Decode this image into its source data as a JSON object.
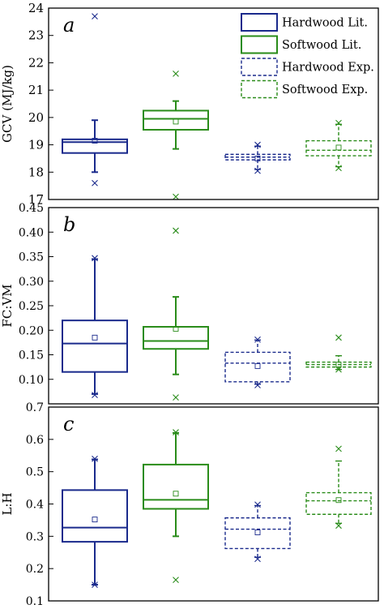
{
  "chart_data": [
    {
      "type": "box",
      "panel_label": "a",
      "ylabel": "GCV (MJ/kg)",
      "ylim": [
        17,
        24
      ],
      "yticks": [
        17,
        18,
        19,
        20,
        21,
        22,
        23,
        24
      ],
      "grid": false,
      "legend": {
        "placement": "top-right",
        "entries": [
          {
            "name": "Hardwood Lit.",
            "color": "#1a2a8c",
            "style": "solid"
          },
          {
            "name": "Softwood Lit.",
            "color": "#2a8c1a",
            "style": "solid"
          },
          {
            "name": "Hardwood Exp.",
            "color": "#1a2a8c",
            "style": "dashed"
          },
          {
            "name": "Softwood Exp.",
            "color": "#2a8c1a",
            "style": "dashed"
          }
        ]
      },
      "series": [
        {
          "name": "Hardwood Lit.",
          "color": "#1a2a8c",
          "style": "solid",
          "whisker_low": 18.0,
          "q1": 18.7,
          "median": 19.1,
          "q3": 19.2,
          "whisker_high": 19.9,
          "mean": 19.15,
          "outliers": [
            17.6,
            23.7
          ]
        },
        {
          "name": "Softwood Lit.",
          "color": "#2a8c1a",
          "style": "solid",
          "whisker_low": 18.85,
          "q1": 19.55,
          "median": 19.95,
          "q3": 20.25,
          "whisker_high": 20.6,
          "mean": 19.85,
          "outliers": [
            17.1,
            21.6
          ]
        },
        {
          "name": "Hardwood Exp.",
          "color": "#1a2a8c",
          "style": "dashed",
          "whisker_low": 18.1,
          "q1": 18.45,
          "median": 18.55,
          "q3": 18.65,
          "whisker_high": 18.95,
          "mean": 18.5,
          "outliers": [
            18.05,
            19.0
          ]
        },
        {
          "name": "Softwood Exp.",
          "color": "#2a8c1a",
          "style": "dashed",
          "whisker_low": 18.2,
          "q1": 18.6,
          "median": 18.8,
          "q3": 19.15,
          "whisker_high": 19.75,
          "mean": 18.9,
          "outliers": [
            18.15,
            19.8
          ]
        }
      ]
    },
    {
      "type": "box",
      "panel_label": "b",
      "ylabel": "FC:VM",
      "ylim": [
        0.05,
        0.45
      ],
      "yticks": [
        0.1,
        0.15,
        0.2,
        0.25,
        0.3,
        0.35,
        0.4,
        0.45
      ],
      "ytick_labels": [
        "0.10",
        "0.15",
        "0.20",
        "0.25",
        "0.30",
        "0.35",
        "0.40",
        "0.45"
      ],
      "grid": false,
      "series": [
        {
          "name": "Hardwood Lit.",
          "color": "#1a2a8c",
          "style": "solid",
          "whisker_low": 0.07,
          "q1": 0.115,
          "median": 0.173,
          "q3": 0.22,
          "whisker_high": 0.345,
          "mean": 0.185,
          "outliers": [
            0.068,
            0.347
          ]
        },
        {
          "name": "Softwood Lit.",
          "color": "#2a8c1a",
          "style": "solid",
          "whisker_low": 0.11,
          "q1": 0.162,
          "median": 0.178,
          "q3": 0.207,
          "whisker_high": 0.268,
          "mean": 0.203,
          "outliers": [
            0.063,
            0.403
          ]
        },
        {
          "name": "Hardwood Exp.",
          "color": "#1a2a8c",
          "style": "dashed",
          "whisker_low": 0.09,
          "q1": 0.095,
          "median": 0.133,
          "q3": 0.155,
          "whisker_high": 0.18,
          "mean": 0.127,
          "outliers": [
            0.088,
            0.181
          ]
        },
        {
          "name": "Softwood Exp.",
          "color": "#2a8c1a",
          "style": "dashed",
          "whisker_low": 0.12,
          "q1": 0.125,
          "median": 0.13,
          "q3": 0.135,
          "whisker_high": 0.148,
          "mean": 0.13,
          "outliers": [
            0.12,
            0.185
          ]
        }
      ]
    },
    {
      "type": "box",
      "panel_label": "c",
      "ylabel": "L:H",
      "ylim": [
        0.1,
        0.7
      ],
      "yticks": [
        0.1,
        0.2,
        0.3,
        0.4,
        0.5,
        0.6,
        0.7
      ],
      "ytick_labels": [
        "0.1",
        "0.2",
        "0.3",
        "0.4",
        "0.5",
        "0.6",
        "0.7"
      ],
      "grid": false,
      "series": [
        {
          "name": "Hardwood Lit.",
          "color": "#1a2a8c",
          "style": "solid",
          "whisker_low": 0.15,
          "q1": 0.283,
          "median": 0.327,
          "q3": 0.443,
          "whisker_high": 0.538,
          "mean": 0.352,
          "outliers": [
            0.15,
            0.54
          ]
        },
        {
          "name": "Softwood Lit.",
          "color": "#2a8c1a",
          "style": "solid",
          "whisker_low": 0.3,
          "q1": 0.385,
          "median": 0.413,
          "q3": 0.522,
          "whisker_high": 0.62,
          "mean": 0.432,
          "outliers": [
            0.165,
            0.622
          ]
        },
        {
          "name": "Hardwood Exp.",
          "color": "#1a2a8c",
          "style": "dashed",
          "whisker_low": 0.235,
          "q1": 0.262,
          "median": 0.322,
          "q3": 0.357,
          "whisker_high": 0.395,
          "mean": 0.312,
          "outliers": [
            0.23,
            0.398
          ]
        },
        {
          "name": "Softwood Exp.",
          "color": "#2a8c1a",
          "style": "dashed",
          "whisker_low": 0.34,
          "q1": 0.368,
          "median": 0.41,
          "q3": 0.435,
          "whisker_high": 0.533,
          "mean": 0.412,
          "outliers": [
            0.333,
            0.571
          ]
        }
      ]
    }
  ]
}
